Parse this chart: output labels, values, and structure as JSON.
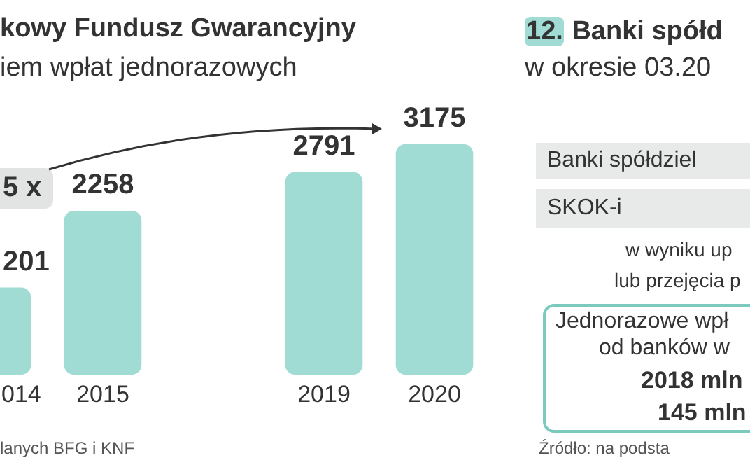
{
  "chart_data": [
    {
      "type": "bar",
      "title": "kowy Fundusz Gwarancyjny",
      "subtitle": "iem wpłat jednorazowych",
      "categories": [
        "014",
        "2015",
        null,
        "2019",
        "2020"
      ],
      "values": [
        1201,
        2258,
        null,
        2791,
        3175
      ],
      "value_labels": [
        null,
        "2258",
        null,
        "2791",
        "3175"
      ],
      "color": "#a0dcd4",
      "annotations": [
        "5 x",
        "lanych BFG i KNF",
        "201"
      ],
      "grid": false,
      "legend": false
    },
    {
      "type": "other",
      "title": "12. Banki spółd",
      "subtitle": "w okresie 03.20",
      "annotations": [
        "Banki spółdziel",
        "SKOK-i",
        "w wyniku up",
        "lub przejęcia p",
        "Jednorazowe wpł",
        "od banków w",
        "2018 mln",
        "145 mln",
        "Źródło: na podsta"
      ]
    }
  ]
}
